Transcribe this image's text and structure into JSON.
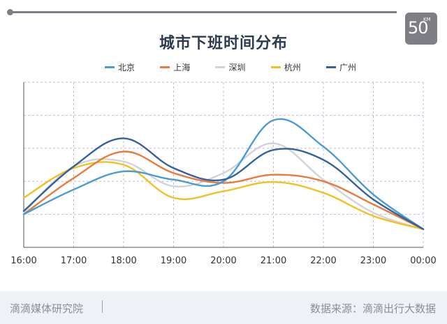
{
  "logo": {
    "number": "50",
    "unit": "KM"
  },
  "footer": {
    "left_text": "滴滴媒体研究院",
    "right_text": "数据来源：滴滴出行大数据"
  },
  "chart_data": {
    "type": "line",
    "title": "城市下班时间分布",
    "xlabel": "",
    "ylabel": "",
    "x": [
      "16:00",
      "17:00",
      "18:00",
      "19:00",
      "20:00",
      "21:00",
      "22:00",
      "23:00",
      "00:00"
    ],
    "ylim": [
      0,
      5
    ],
    "grid": true,
    "legend_position": "top",
    "series": [
      {
        "name": "北京",
        "color": "#4a9ad4",
        "values": [
          1.0,
          1.75,
          2.3,
          2.05,
          2.0,
          3.85,
          3.05,
          1.6,
          0.55
        ]
      },
      {
        "name": "上海",
        "color": "#e87b3a",
        "values": [
          1.0,
          2.1,
          2.9,
          2.25,
          1.95,
          2.2,
          2.0,
          1.3,
          0.55
        ]
      },
      {
        "name": "深圳",
        "color": "#cfd3dc",
        "values": [
          1.05,
          2.45,
          2.6,
          1.85,
          2.25,
          3.15,
          2.05,
          1.05,
          0.55
        ]
      },
      {
        "name": "杭州",
        "color": "#f3c022",
        "values": [
          1.5,
          2.4,
          2.5,
          1.5,
          1.7,
          1.98,
          1.65,
          0.95,
          0.55
        ]
      },
      {
        "name": "广州",
        "color": "#35619c",
        "values": [
          1.1,
          2.45,
          3.3,
          2.4,
          2.05,
          2.95,
          2.65,
          1.45,
          0.55
        ]
      }
    ]
  }
}
